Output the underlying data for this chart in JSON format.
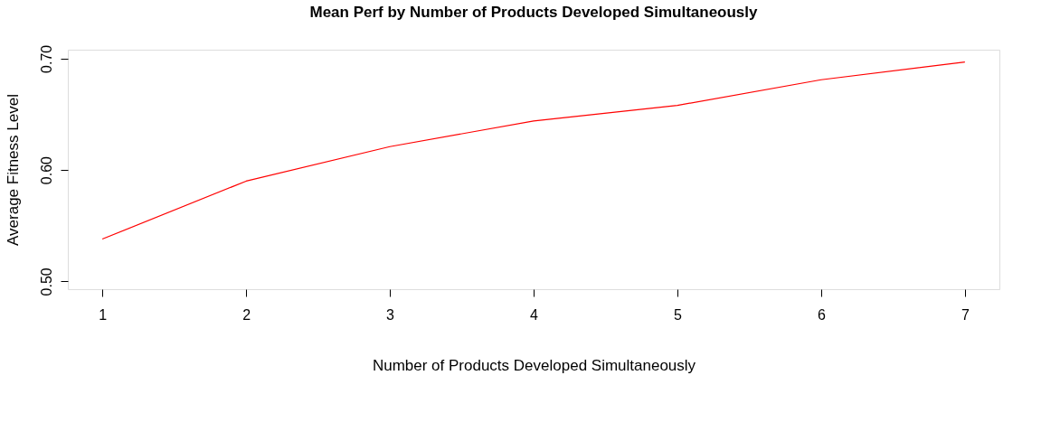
{
  "chart_data": {
    "type": "line",
    "title": "Mean Perf by Number of Products Developed Simultaneously",
    "xlabel": "Number of Products Developed Simultaneously",
    "ylabel": "Average Fitness Level",
    "x": [
      1,
      2,
      3,
      4,
      5,
      6,
      7
    ],
    "series": [
      {
        "color": "#ff0000",
        "values": [
          0.538,
          0.59,
          0.621,
          0.644,
          0.658,
          0.681,
          0.697
        ]
      }
    ],
    "xlim": [
      0.76,
      7.24
    ],
    "ylim": [
      0.493,
      0.708
    ],
    "xticks": [
      1,
      2,
      3,
      4,
      5,
      6,
      7
    ],
    "yticks": [
      {
        "value": 0.5,
        "label": "0.50"
      },
      {
        "value": 0.6,
        "label": "0.60"
      },
      {
        "value": 0.7,
        "label": "0.70"
      }
    ],
    "grid": false,
    "legend": false,
    "marker": "none",
    "line_style": "solid"
  }
}
